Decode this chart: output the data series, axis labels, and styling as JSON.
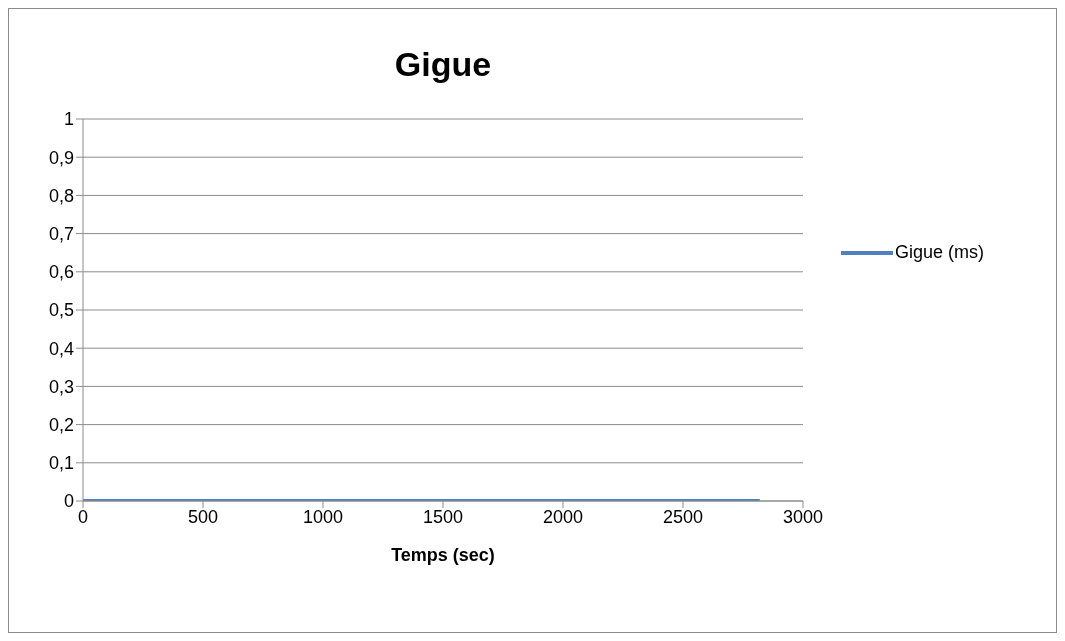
{
  "chart_data": {
    "type": "line",
    "title": "Gigue",
    "xlabel": "Temps  (sec)",
    "x": [
      0,
      2820
    ],
    "series": [
      {
        "name": "Gigue (ms)",
        "color": "#4f81bd",
        "values": [
          0,
          0
        ]
      }
    ],
    "xlim": [
      0,
      3000
    ],
    "xticks": [
      0,
      500,
      1000,
      1500,
      2000,
      2500,
      3000
    ],
    "ylim": [
      0,
      1
    ],
    "yticks": [
      0,
      {
        "value": 0.1,
        "label": "0,1"
      },
      {
        "value": 0.2,
        "label": "0,2"
      },
      {
        "value": 0.3,
        "label": "0,3"
      },
      {
        "value": 0.4,
        "label": "0,4"
      },
      {
        "value": 0.5,
        "label": "0,5"
      },
      {
        "value": 0.6,
        "label": "0,6"
      },
      {
        "value": 0.7,
        "label": "0,7"
      },
      {
        "value": 0.8,
        "label": "0,8"
      },
      {
        "value": 0.9,
        "label": "0,9"
      },
      1
    ],
    "grid": "y",
    "legend": "right",
    "marker": "none",
    "line_style": "solid"
  }
}
